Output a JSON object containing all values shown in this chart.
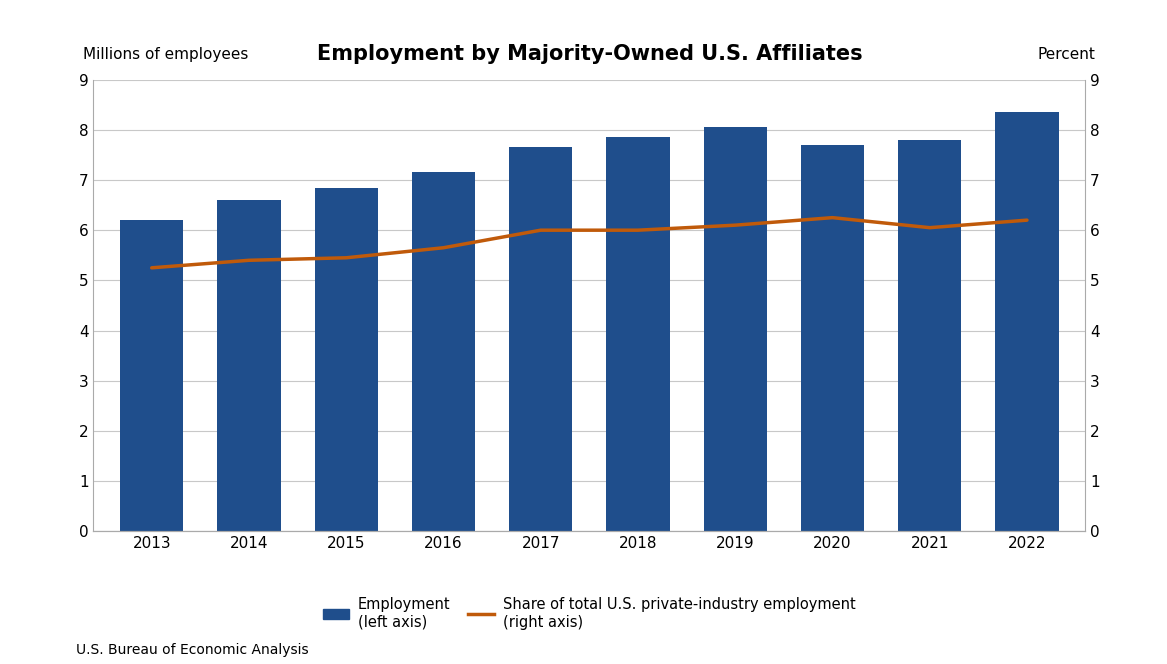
{
  "title": "Employment by Majority-Owned U.S. Affiliates",
  "years": [
    2013,
    2014,
    2015,
    2016,
    2017,
    2018,
    2019,
    2020,
    2021,
    2022
  ],
  "employment": [
    6.2,
    6.6,
    6.85,
    7.15,
    7.65,
    7.85,
    8.05,
    7.7,
    7.8,
    8.35
  ],
  "share": [
    5.25,
    5.4,
    5.45,
    5.65,
    6.0,
    6.0,
    6.1,
    6.25,
    6.05,
    6.2
  ],
  "bar_color": "#1f4e8c",
  "line_color": "#c05a0a",
  "label_left": "Millions of employees",
  "label_right": "Percent",
  "ylim_left": [
    0,
    9
  ],
  "ylim_right": [
    0,
    9
  ],
  "yticks": [
    0,
    1,
    2,
    3,
    4,
    5,
    6,
    7,
    8,
    9
  ],
  "legend_bar_label1": "Employment",
  "legend_bar_label2": "(left axis)",
  "legend_line_label1": "Share of total U.S. private-industry employment",
  "legend_line_label2": "(right axis)",
  "source_text": "U.S. Bureau of Economic Analysis",
  "background_color": "#ffffff",
  "grid_color": "#c8c8c8",
  "title_fontsize": 15,
  "axis_label_fontsize": 11,
  "tick_fontsize": 11,
  "legend_fontsize": 10.5,
  "source_fontsize": 10
}
